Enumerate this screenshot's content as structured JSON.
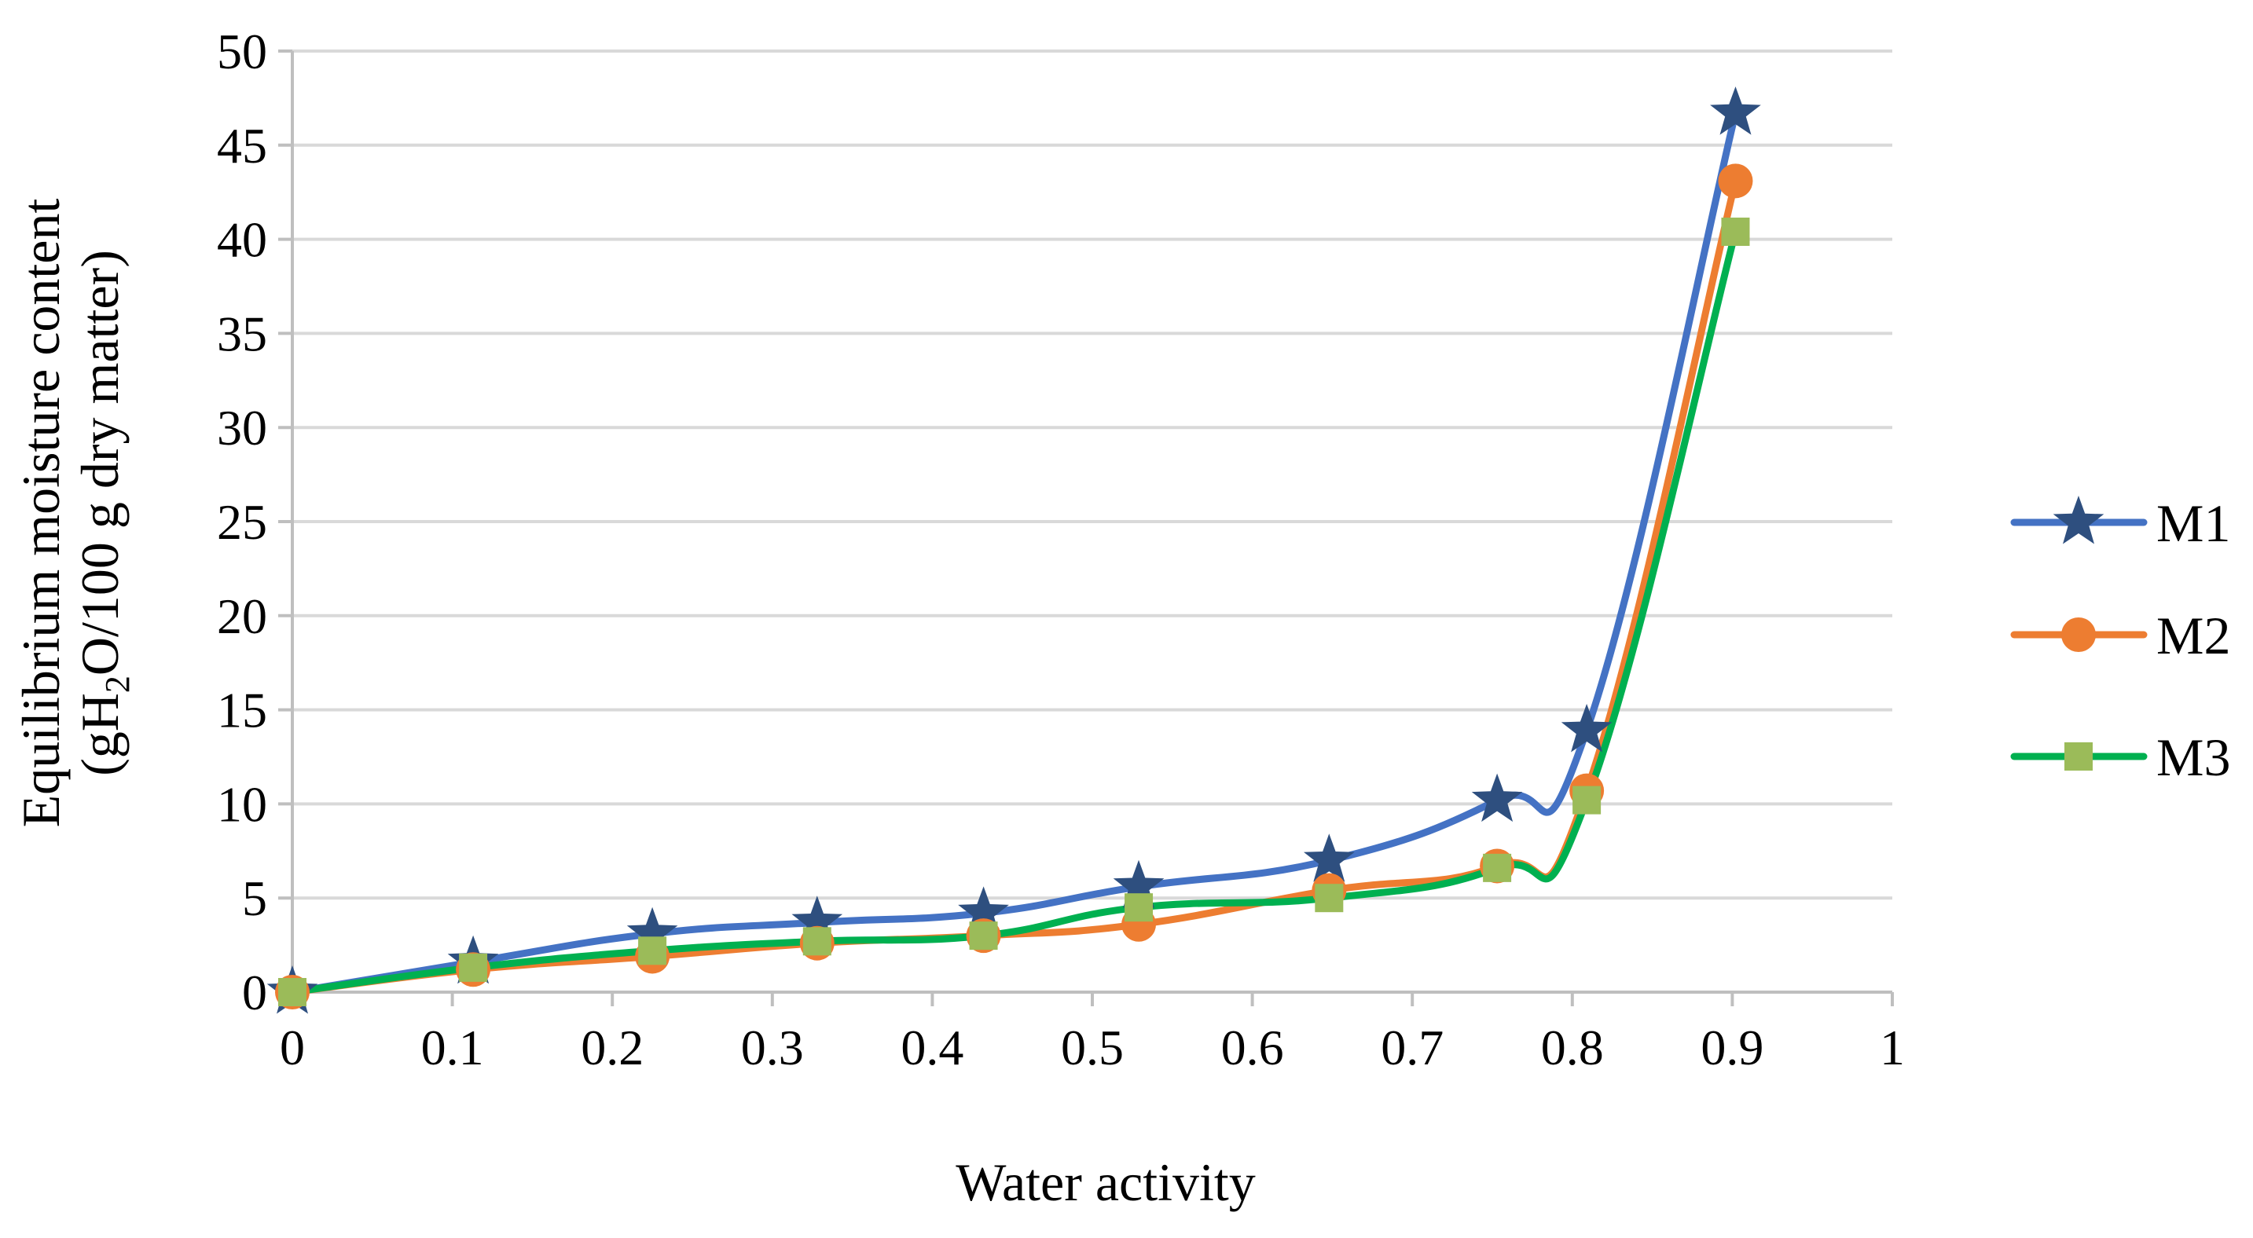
{
  "chart_data": {
    "type": "line",
    "title": "",
    "xlabel": "Water activity",
    "ylabel_line1": "Equilibrium moisture content",
    "ylabel_line2_prefix": "(gH",
    "ylabel_line2_sub": "2",
    "ylabel_line2_suffix": "O/100 g dry matter)",
    "xlim": [
      0,
      1
    ],
    "ylim": [
      0,
      50
    ],
    "xticks": [
      0,
      0.1,
      0.2,
      0.3,
      0.4,
      0.5,
      0.6,
      0.7,
      0.8,
      0.9,
      1
    ],
    "xtick_labels": [
      "0",
      "0.1",
      "0.2",
      "0.3",
      "0.4",
      "0.5",
      "0.6",
      "0.7",
      "0.8",
      "0.9",
      "1"
    ],
    "yticks": [
      0,
      5,
      10,
      15,
      20,
      25,
      30,
      35,
      40,
      45,
      50
    ],
    "ytick_labels": [
      "0",
      "5",
      "10",
      "15",
      "20",
      "25",
      "30",
      "35",
      "40",
      "45",
      "50"
    ],
    "grid": true,
    "legend_position": "right",
    "x": [
      0,
      0.113,
      0.225,
      0.328,
      0.432,
      0.529,
      0.648,
      0.753,
      0.809,
      0.902
    ],
    "series": [
      {
        "name": "M1",
        "marker": "star",
        "line_color": "#4472C4",
        "marker_color": "#2E4F7F",
        "values": [
          0,
          1.6,
          3.1,
          3.7,
          4.2,
          5.6,
          7.0,
          10.2,
          13.9,
          46.7
        ]
      },
      {
        "name": "M2",
        "marker": "circle",
        "line_color": "#ED7D31",
        "marker_color": "#ED7D31",
        "values": [
          0,
          1.2,
          1.9,
          2.6,
          3.0,
          3.6,
          5.4,
          6.7,
          10.7,
          43.1
        ]
      },
      {
        "name": "M3",
        "marker": "square",
        "line_color": "#00B050",
        "marker_color": "#9BBB59",
        "values": [
          0,
          1.3,
          2.2,
          2.7,
          3.0,
          4.5,
          5.0,
          6.6,
          10.2,
          40.4
        ]
      }
    ]
  }
}
